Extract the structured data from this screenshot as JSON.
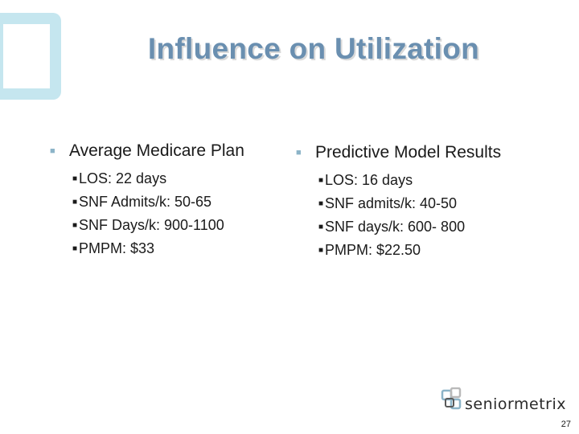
{
  "slide": {
    "title": "Influence on Utilization",
    "page_number": "27"
  },
  "left_column": {
    "heading": "Average Medicare Plan",
    "items": [
      "LOS: 22 days",
      "SNF Admits/k: 50-65",
      "SNF Days/k:  900-1100",
      "PMPM: $33"
    ]
  },
  "right_column": {
    "heading": "Predictive Model Results",
    "items": [
      "LOS: 16 days",
      "SNF admits/k: 40-50",
      "SNF days/k: 600- 800",
      "PMPM: $22.50"
    ]
  },
  "logo": {
    "text": "seniormetrix",
    "icon": "overlapping-squares-logo-icon"
  },
  "colors": {
    "title": "#6a8fb0",
    "corner_mark": "#c5e6ef",
    "bullet": "#8cb4c8"
  }
}
